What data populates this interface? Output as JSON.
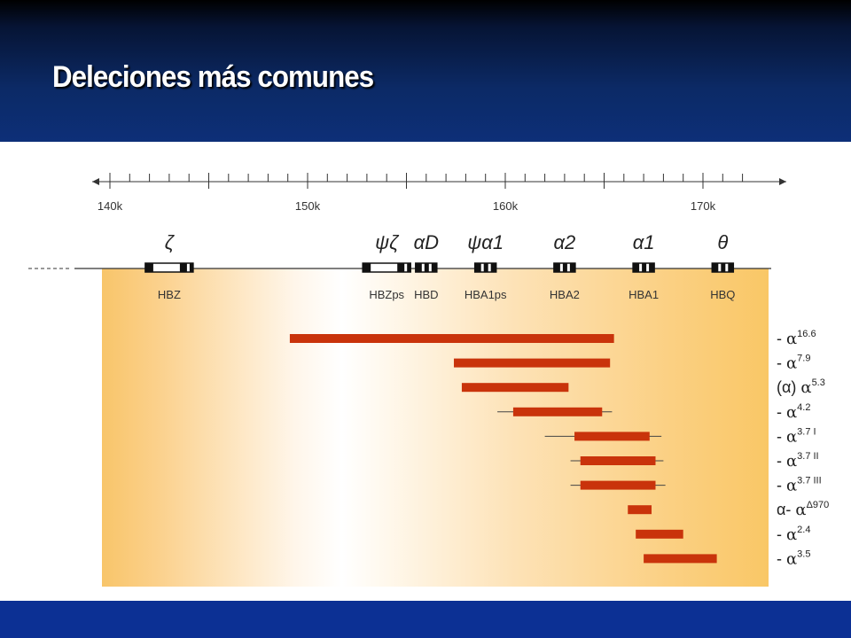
{
  "slide": {
    "title": "Deleciones más comunes"
  },
  "diagram": {
    "ruler": {
      "tick_labels": [
        "140k",
        "150k",
        "160k",
        "170k"
      ],
      "major_ticks_kb": [
        140,
        150,
        160,
        170
      ]
    },
    "genes": [
      {
        "symbol": "ζ",
        "label": "HBZ",
        "pos_kb": 143
      },
      {
        "symbol": "ψζ",
        "label": "HBZps",
        "pos_kb": 154
      },
      {
        "symbol": "αD",
        "label": "HBD",
        "pos_kb": 156
      },
      {
        "symbol": "ψα1",
        "label": "HBA1ps",
        "pos_kb": 159
      },
      {
        "symbol": "α2",
        "label": "HBA2",
        "pos_kb": 163
      },
      {
        "symbol": "α1",
        "label": "HBA1",
        "pos_kb": 167
      },
      {
        "symbol": "θ",
        "label": "HBQ",
        "pos_kb": 171
      }
    ],
    "deletions": [
      {
        "prefix": "- ",
        "base": "α",
        "sup": "16.6",
        "start_kb": 149.1,
        "end_kb": 165.5,
        "flank_start_kb": null,
        "flank_end_kb": null
      },
      {
        "prefix": "- ",
        "base": "α",
        "sup": "7.9",
        "start_kb": 157.4,
        "end_kb": 165.3,
        "flank_start_kb": null,
        "flank_end_kb": null
      },
      {
        "prefix": "(α) ",
        "base": "α",
        "sup": "5.3",
        "start_kb": 157.8,
        "end_kb": 163.2,
        "flank_start_kb": null,
        "flank_end_kb": null
      },
      {
        "prefix": "- ",
        "base": "α",
        "sup": "4.2",
        "start_kb": 160.4,
        "end_kb": 164.9,
        "flank_start_kb": 159.6,
        "flank_end_kb": 165.4
      },
      {
        "prefix": "- ",
        "base": "α",
        "sup": "3.7 I",
        "start_kb": 163.5,
        "end_kb": 167.3,
        "flank_start_kb": 162.0,
        "flank_end_kb": 167.9
      },
      {
        "prefix": "- ",
        "base": "α",
        "sup": "3.7 II",
        "start_kb": 163.8,
        "end_kb": 167.6,
        "flank_start_kb": 163.3,
        "flank_end_kb": 168.0
      },
      {
        "prefix": "- ",
        "base": "α",
        "sup": "3.7 III",
        "start_kb": 163.8,
        "end_kb": 167.6,
        "flank_start_kb": 163.3,
        "flank_end_kb": 168.1
      },
      {
        "prefix": "α- ",
        "base": "α",
        "sup": "Δ970",
        "start_kb": 166.2,
        "end_kb": 167.4,
        "flank_start_kb": null,
        "flank_end_kb": null
      },
      {
        "prefix": "- ",
        "base": "α",
        "sup": "2.4",
        "start_kb": 166.6,
        "end_kb": 169.0,
        "flank_start_kb": null,
        "flank_end_kb": null
      },
      {
        "prefix": "- ",
        "base": "α",
        "sup": "3.5",
        "start_kb": 167.0,
        "end_kb": 170.7,
        "flank_start_kb": null,
        "flank_end_kb": null
      }
    ],
    "colors": {
      "deletion_bar": "#c9330b",
      "gradient_edge": "#f8c56a",
      "gradient_center": "#ffffff"
    }
  }
}
